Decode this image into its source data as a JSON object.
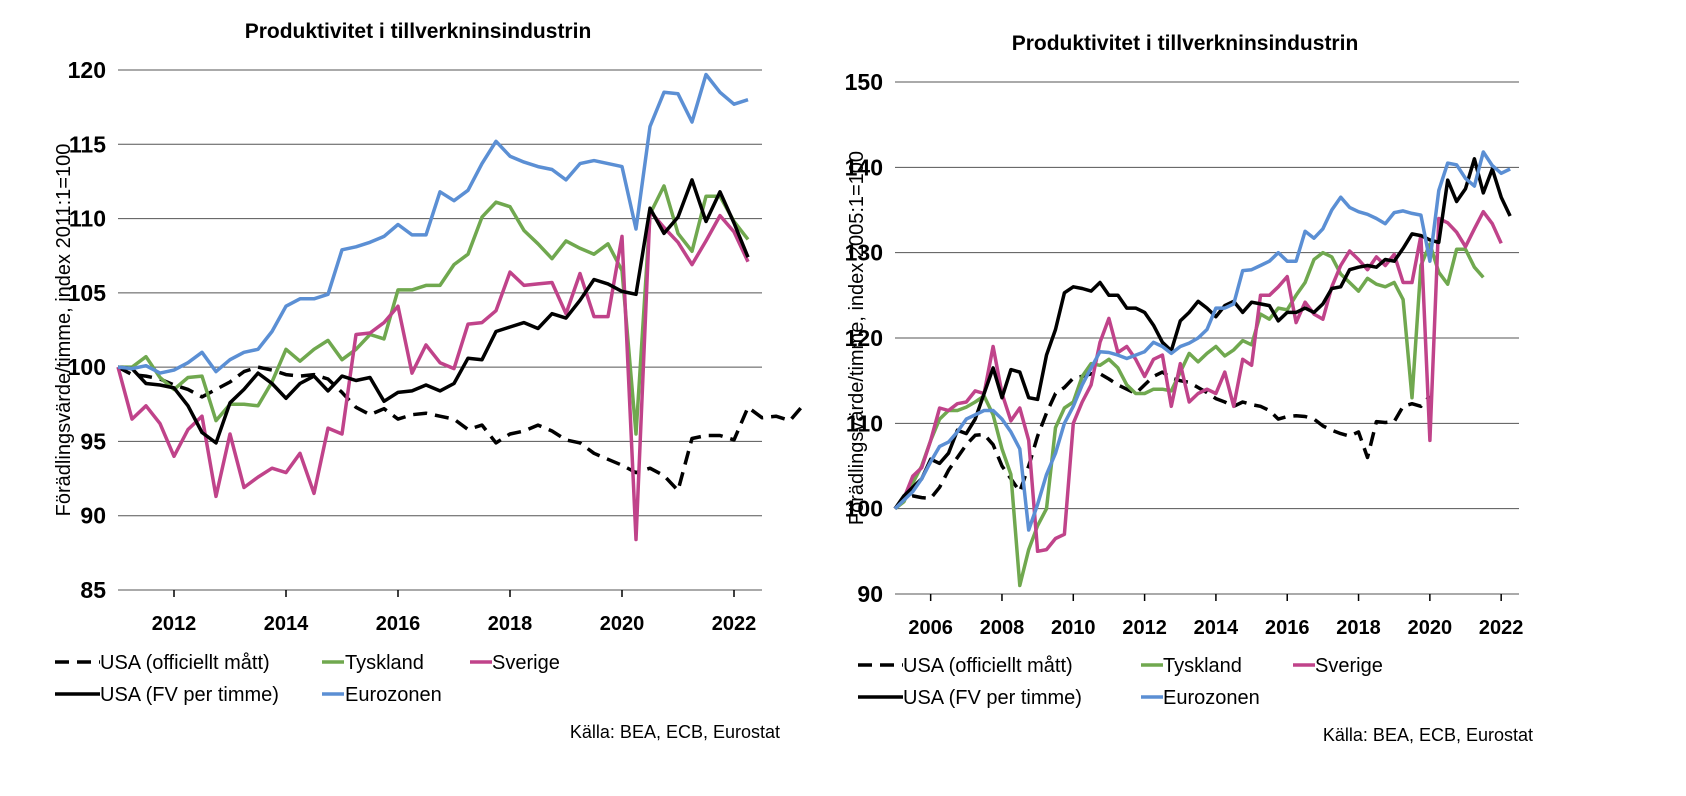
{
  "chart_data": [
    {
      "type": "line",
      "title": "Produktivitet i tillverkninsindustrin",
      "ylabel": "Förädlingsvärde/timme, index 2011:1=100",
      "xlabel": "",
      "ylim": [
        85,
        120
      ],
      "yticks": [
        85,
        90,
        95,
        100,
        105,
        110,
        115,
        120
      ],
      "xlim": [
        2011.0,
        2022.5
      ],
      "xticks": [
        2012,
        2014,
        2016,
        2018,
        2020,
        2022
      ],
      "grid": true,
      "legend_position": "bottom",
      "source": "Källa: BEA, ECB, Eurostat",
      "x_start": 2011.0,
      "x_step": 0.25,
      "series": [
        {
          "name": "USA (officiellt mått)",
          "color": "#000000",
          "dash": true,
          "values": [
            100,
            99.5,
            99.4,
            99.2,
            98.8,
            98.5,
            98,
            98.5,
            99,
            99.7,
            100,
            99.8,
            99.5,
            99.4,
            99.5,
            99.2,
            98.3,
            97.3,
            96.8,
            97.2,
            96.5,
            96.8,
            96.9,
            96.7,
            96.5,
            95.8,
            96.1,
            94.9,
            95.5,
            95.7,
            96.1,
            95.7,
            95.1,
            94.9,
            94.2,
            93.8,
            93.4,
            92.9,
            93.2,
            92.7,
            91.7,
            95.2,
            95.4,
            95.4,
            95.1,
            97.3,
            96.6,
            96.7,
            96.4,
            97.5
          ]
        },
        {
          "name": "Tyskland",
          "color": "#70a84f",
          "dash": false,
          "values": [
            100,
            100,
            100.7,
            99.3,
            98.5,
            99.3,
            99.4,
            96.4,
            97.5,
            97.5,
            97.4,
            99,
            101.2,
            100.4,
            101.2,
            101.8,
            100.5,
            101.2,
            102.2,
            101.9,
            105.2,
            105.2,
            105.5,
            105.5,
            106.9,
            107.6,
            110.1,
            111.1,
            110.8,
            109.2,
            108.3,
            107.3,
            108.5,
            108,
            107.6,
            108.3,
            106.5,
            95.5,
            110.3,
            112.2,
            109,
            107.8,
            111.5,
            111.5,
            109.8,
            108.6
          ]
        },
        {
          "name": "Sverige",
          "color": "#c0438a",
          "dash": false,
          "values": [
            100,
            96.5,
            97.4,
            96.2,
            94,
            95.8,
            96.7,
            91.3,
            95.5,
            91.9,
            92.6,
            93.2,
            92.9,
            94.2,
            91.5,
            95.9,
            95.5,
            102.2,
            102.3,
            103,
            104.1,
            99.6,
            101.5,
            100.3,
            99.9,
            102.9,
            103,
            103.8,
            106.4,
            105.5,
            105.6,
            105.7,
            103.6,
            106.3,
            103.4,
            103.4,
            108.8,
            88.4,
            110.5,
            109.4,
            108.4,
            106.9,
            108.5,
            110.2,
            109.1,
            107.1
          ]
        },
        {
          "name": "USA (FV per timme)",
          "color": "#000000",
          "dash": false,
          "values": [
            100,
            99.9,
            98.9,
            98.8,
            98.6,
            97.4,
            95.6,
            94.9,
            97.6,
            98.5,
            99.6,
            98.9,
            97.9,
            98.9,
            99.4,
            98.4,
            99.4,
            99.1,
            99.3,
            97.7,
            98.3,
            98.4,
            98.8,
            98.4,
            98.9,
            100.6,
            100.5,
            102.4,
            102.7,
            103,
            102.6,
            103.6,
            103.3,
            104.5,
            105.9,
            105.6,
            105.1,
            104.9,
            110.7,
            109,
            110.1,
            112.6,
            109.8,
            111.8,
            109.7,
            107.4
          ]
        },
        {
          "name": "Eurozonen",
          "color": "#5b8fd4",
          "dash": false,
          "values": [
            100,
            99.9,
            100.1,
            99.6,
            99.8,
            100.3,
            101,
            99.7,
            100.5,
            101,
            101.2,
            102.4,
            104.1,
            104.6,
            104.6,
            104.9,
            107.9,
            108.1,
            108.4,
            108.8,
            109.6,
            108.9,
            108.9,
            111.8,
            111.2,
            111.9,
            113.7,
            115.2,
            114.2,
            113.8,
            113.5,
            113.3,
            112.6,
            113.7,
            113.9,
            113.7,
            113.5,
            109.3,
            116.2,
            118.5,
            118.4,
            116.5,
            119.7,
            118.5,
            117.7,
            118
          ]
        }
      ]
    },
    {
      "type": "line",
      "title": "Produktivitet i tillverkninsindustrin",
      "ylabel": "Förädlingsvärde/timme, index 2005:1=100",
      "xlabel": "",
      "ylim": [
        90,
        150
      ],
      "yticks": [
        90,
        100,
        110,
        120,
        130,
        140,
        150
      ],
      "xlim": [
        2005.0,
        2022.5
      ],
      "xticks": [
        2006,
        2008,
        2010,
        2012,
        2014,
        2016,
        2018,
        2020,
        2022
      ],
      "grid": true,
      "legend_position": "bottom",
      "source": "Källa: BEA, ECB, Eurostat",
      "x_start": 2005.0,
      "x_step": 0.25,
      "series": [
        {
          "name": "USA (officiellt mått)",
          "color": "#000000",
          "dash": true,
          "values": [
            100,
            101.2,
            101.5,
            101.3,
            101.2,
            102.5,
            104.5,
            106,
            107.5,
            108.6,
            108.7,
            107.5,
            105,
            103.5,
            102,
            105,
            108.5,
            111.2,
            113.5,
            114.2,
            115.3,
            115.5,
            115.8,
            115.8,
            115.2,
            114.5,
            114,
            113.5,
            114.5,
            115.5,
            116,
            115.3,
            115,
            114.8,
            114.2,
            113.6,
            112.9,
            112.5,
            112,
            112.5,
            112.2,
            112,
            111.5,
            110.5,
            110.8,
            110.9,
            110.8,
            110.5,
            109.7,
            109.2,
            108.8,
            108.5,
            109,
            106,
            110.2,
            110.1,
            110.2,
            112,
            112.3,
            112,
            113.2
          ]
        },
        {
          "name": "Tyskland",
          "color": "#70a84f",
          "dash": false,
          "values": [
            100,
            100.8,
            103,
            105,
            108,
            110.5,
            111.5,
            111.5,
            111.9,
            112.5,
            113.2,
            111,
            107,
            104,
            91,
            95.2,
            98,
            100,
            109.5,
            111.8,
            112.5,
            115.5,
            117,
            116.8,
            117.5,
            116.5,
            114.5,
            113.5,
            113.5,
            114,
            114,
            113.8,
            116,
            118.2,
            117.2,
            118.2,
            119,
            117.9,
            118.6,
            119.7,
            119.2,
            122.8,
            122.2,
            123.5,
            123.3,
            125,
            126.5,
            129.2,
            130,
            129.5,
            127.5,
            126.5,
            125.5,
            127,
            126.3,
            126,
            126.5,
            124.5,
            113,
            128.5,
            131,
            127.7,
            126.3,
            130.4,
            130.4,
            128.3,
            127.1
          ]
        },
        {
          "name": "Sverige",
          "color": "#c0438a",
          "dash": false,
          "values": [
            100,
            101.2,
            103.8,
            104.8,
            108,
            111.8,
            111.5,
            112.3,
            112.5,
            113.8,
            113.5,
            119,
            113.5,
            110.3,
            111.8,
            108,
            95,
            95.2,
            96.5,
            97,
            110,
            112.5,
            114.5,
            119.5,
            122.3,
            118.3,
            119,
            117.5,
            115.5,
            117.5,
            118,
            112,
            117,
            112.5,
            113.5,
            114,
            113.5,
            116,
            112,
            117.5,
            116.8,
            125,
            125,
            126,
            127.2,
            121.8,
            124.2,
            122.8,
            122.2,
            126,
            128.5,
            130.2,
            129.2,
            128,
            129.5,
            128.5,
            129.8,
            126.5,
            126.5,
            132,
            108,
            134,
            133.5,
            132.4,
            130.7,
            132.8,
            134.8,
            133.4,
            131.1
          ]
        },
        {
          "name": "USA (FV per timme)",
          "color": "#000000",
          "dash": false,
          "values": [
            100,
            101.5,
            102.5,
            103.5,
            105.8,
            105.3,
            106.5,
            109.2,
            108.8,
            110.5,
            113.5,
            116.5,
            113,
            116.3,
            116,
            113,
            112.8,
            118,
            121,
            125.3,
            126,
            125.8,
            125.5,
            126.5,
            125,
            125,
            123.5,
            123.5,
            123,
            121.5,
            119.5,
            118.5,
            122,
            123,
            124.3,
            123.5,
            122.5,
            123.8,
            124.3,
            123,
            124.2,
            124,
            123.8,
            122,
            123,
            123,
            123.5,
            123,
            124,
            125.8,
            126,
            128,
            128.3,
            128.5,
            128.3,
            129.2,
            129,
            130.5,
            132.2,
            132,
            131.5,
            131.2,
            138.5,
            136,
            137.5,
            141,
            137,
            139.8,
            136.5,
            134.3
          ]
        },
        {
          "name": "Eurozonen",
          "color": "#5b8fd4",
          "dash": false,
          "values": [
            100,
            101,
            102,
            103.5,
            105.5,
            107.3,
            107.8,
            109,
            110.5,
            111,
            111.5,
            111.5,
            110.5,
            109,
            107,
            97.5,
            100.5,
            104,
            106.5,
            110,
            112,
            114.5,
            116.5,
            118.4,
            118.3,
            118,
            117.6,
            118,
            118.4,
            119.5,
            119,
            118.2,
            119,
            119.4,
            120,
            121,
            123.5,
            123.5,
            124,
            127.9,
            128,
            128.5,
            129,
            130,
            129,
            129,
            132.5,
            131.7,
            132.8,
            135,
            136.5,
            135.3,
            134.8,
            134.5,
            134,
            133.4,
            134.7,
            134.9,
            134.6,
            134.4,
            129,
            137.3,
            140.5,
            140.3,
            138.7,
            137.8,
            141.8,
            140.2,
            139.3,
            139.8
          ]
        }
      ]
    }
  ]
}
